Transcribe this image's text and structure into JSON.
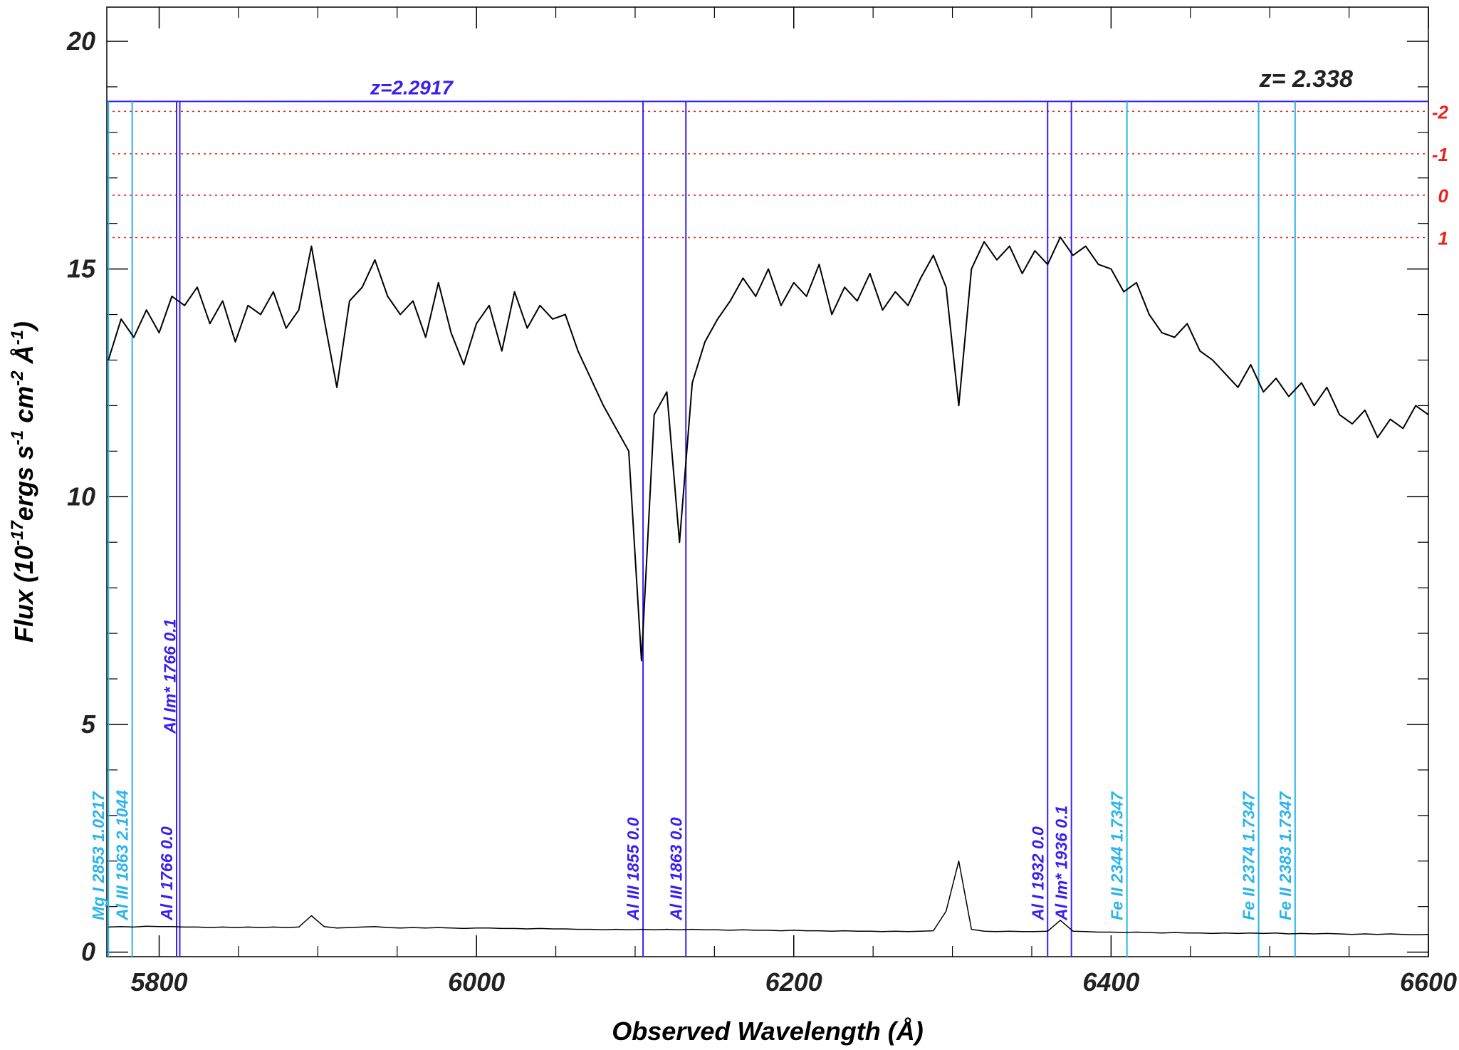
{
  "chart_data": {
    "type": "line",
    "xlabel": "Observed Wavelength (Å)",
    "ylabel_parts": [
      "Flux (10",
      "-17",
      "ergs s",
      "-1",
      " cm",
      "-2",
      " Å",
      "-1",
      ")"
    ],
    "xlim": [
      5767,
      6600
    ],
    "ylim": [
      -0.1,
      20.75
    ],
    "xticks": [
      5800,
      6000,
      6200,
      6400,
      6600
    ],
    "yticks": [
      0,
      5,
      10,
      15,
      20
    ],
    "x": [
      5768,
      5776,
      5784,
      5792,
      5800,
      5808,
      5816,
      5824,
      5832,
      5840,
      5848,
      5856,
      5864,
      5872,
      5880,
      5888,
      5896,
      5904,
      5912,
      5920,
      5928,
      5936,
      5944,
      5952,
      5960,
      5968,
      5976,
      5984,
      5992,
      6000,
      6008,
      6016,
      6024,
      6032,
      6040,
      6048,
      6056,
      6064,
      6072,
      6080,
      6088,
      6096,
      6104,
      6112,
      6120,
      6128,
      6136,
      6144,
      6152,
      6160,
      6168,
      6176,
      6184,
      6192,
      6200,
      6208,
      6216,
      6224,
      6232,
      6240,
      6248,
      6256,
      6264,
      6272,
      6280,
      6288,
      6296,
      6304,
      6312,
      6320,
      6328,
      6336,
      6344,
      6352,
      6360,
      6368,
      6376,
      6384,
      6392,
      6400,
      6408,
      6416,
      6424,
      6432,
      6440,
      6448,
      6456,
      6464,
      6472,
      6480,
      6488,
      6496,
      6504,
      6512,
      6520,
      6528,
      6536,
      6544,
      6552,
      6560,
      6568,
      6576,
      6584,
      6592,
      6600
    ],
    "series": [
      {
        "color": "#000000",
        "values": [
          13.0,
          13.9,
          13.5,
          14.1,
          13.6,
          14.4,
          14.2,
          14.6,
          13.8,
          14.3,
          13.4,
          14.2,
          14.0,
          14.5,
          13.7,
          14.1,
          15.5,
          13.9,
          12.4,
          14.3,
          14.6,
          15.2,
          14.4,
          14.0,
          14.3,
          13.5,
          14.7,
          13.6,
          12.9,
          13.8,
          14.2,
          13.2,
          14.5,
          13.7,
          14.2,
          13.9,
          14.0,
          13.2,
          12.6,
          12.0,
          11.5,
          11.0,
          6.4,
          11.8,
          12.3,
          9.0,
          12.5,
          13.4,
          13.9,
          14.3,
          14.8,
          14.4,
          15.0,
          14.2,
          14.7,
          14.4,
          15.1,
          14.0,
          14.6,
          14.3,
          14.9,
          14.1,
          14.5,
          14.2,
          14.8,
          15.3,
          14.6,
          12.0,
          15.0,
          15.6,
          15.2,
          15.5,
          14.9,
          15.4,
          15.1,
          15.7,
          15.3,
          15.5,
          15.1,
          15.0,
          14.5,
          14.7,
          14.0,
          13.6,
          13.5,
          13.8,
          13.2,
          13.0,
          12.7,
          12.4,
          12.9,
          12.3,
          12.6,
          12.2,
          12.5,
          12.0,
          12.4,
          11.8,
          11.6,
          11.9,
          11.3,
          11.7,
          11.5,
          12.0,
          11.8
        ]
      },
      {
        "color": "#000000",
        "values": [
          0.55,
          0.56,
          0.55,
          0.57,
          0.56,
          0.56,
          0.55,
          0.55,
          0.54,
          0.55,
          0.54,
          0.55,
          0.54,
          0.55,
          0.54,
          0.55,
          0.8,
          0.56,
          0.53,
          0.54,
          0.55,
          0.56,
          0.54,
          0.53,
          0.54,
          0.53,
          0.54,
          0.53,
          0.52,
          0.53,
          0.53,
          0.52,
          0.52,
          0.51,
          0.52,
          0.51,
          0.51,
          0.5,
          0.5,
          0.49,
          0.5,
          0.49,
          0.5,
          0.49,
          0.5,
          0.49,
          0.5,
          0.49,
          0.49,
          0.48,
          0.49,
          0.48,
          0.48,
          0.47,
          0.48,
          0.47,
          0.47,
          0.46,
          0.47,
          0.46,
          0.46,
          0.45,
          0.46,
          0.45,
          0.46,
          0.47,
          0.9,
          2.0,
          0.5,
          0.46,
          0.45,
          0.46,
          0.45,
          0.45,
          0.46,
          0.7,
          0.46,
          0.45,
          0.44,
          0.44,
          0.43,
          0.44,
          0.43,
          0.42,
          0.43,
          0.42,
          0.42,
          0.41,
          0.42,
          0.41,
          0.42,
          0.41,
          0.42,
          0.4,
          0.41,
          0.4,
          0.41,
          0.4,
          0.39,
          0.4,
          0.39,
          0.4,
          0.39,
          0.38,
          0.39
        ]
      }
    ],
    "z_system": {
      "label": "z=2.2917",
      "value": 18.68,
      "color": "#3a1ff0"
    },
    "z_label": "z= 2.338",
    "level_color": "#e8231c",
    "levels": [
      {
        "value": 18.46,
        "label": "-2"
      },
      {
        "value": 17.53,
        "label": "-1"
      },
      {
        "value": 16.62,
        "label": "0"
      },
      {
        "value": 15.69,
        "label": "1"
      }
    ],
    "lines": [
      {
        "label": "Mg I 2853 1.0217",
        "wavelength": 5768,
        "color": "#2ab4ec"
      },
      {
        "label": "Al III 1863 2.1044",
        "wavelength": 5783,
        "color": "#2ab4ec"
      },
      {
        "label": "Al I 1766 0.0",
        "wavelength": 5811,
        "color": "#3a1ff0"
      },
      {
        "label": "Al Im* 1766 0.1",
        "wavelength": 5813,
        "color": "#3a1ff0"
      },
      {
        "label": "Al III 1855 0.0",
        "wavelength": 6105,
        "color": "#3a1ff0"
      },
      {
        "label": "Al III 1863 0.0",
        "wavelength": 6132,
        "color": "#3a1ff0"
      },
      {
        "label": "Al I 1932 0.0",
        "wavelength": 6360,
        "color": "#3a1ff0"
      },
      {
        "label": "Al Im* 1936 0.1",
        "wavelength": 6375,
        "color": "#3a1ff0"
      },
      {
        "label": "Fe II 2344 1.7347",
        "wavelength": 6410,
        "color": "#2ab4ec"
      },
      {
        "label": "Fe II 2374 1.7347",
        "wavelength": 6493,
        "color": "#2ab4ec"
      },
      {
        "label": "Fe II 2383 1.7347",
        "wavelength": 6516,
        "color": "#2ab4ec"
      }
    ]
  }
}
